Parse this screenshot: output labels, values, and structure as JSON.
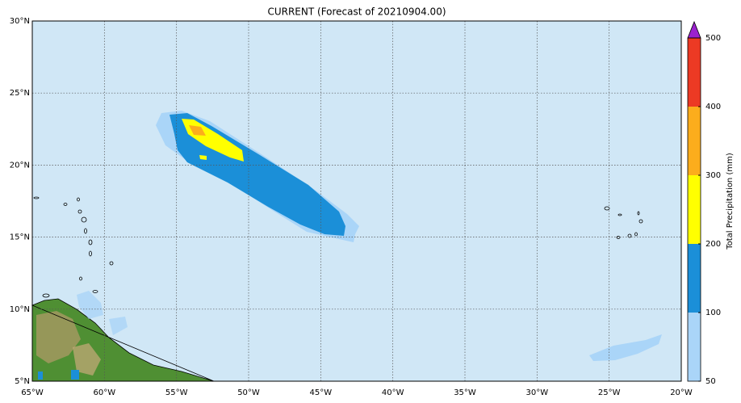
{
  "chart_data": {
    "type": "map",
    "title": "CURRENT (Forecast of 20210904.00)",
    "xlim": [
      -65,
      -20
    ],
    "ylim": [
      5,
      30
    ],
    "xticks": [
      {
        "value": -65,
        "label": "65°W"
      },
      {
        "value": -60,
        "label": "60°W"
      },
      {
        "value": -55,
        "label": "55°W"
      },
      {
        "value": -50,
        "label": "50°W"
      },
      {
        "value": -45,
        "label": "45°W"
      },
      {
        "value": -40,
        "label": "40°W"
      },
      {
        "value": -35,
        "label": "35°W"
      },
      {
        "value": -30,
        "label": "30°W"
      },
      {
        "value": -25,
        "label": "25°W"
      },
      {
        "value": -20,
        "label": "20°W"
      }
    ],
    "yticks": [
      {
        "value": 5,
        "label": "5°N"
      },
      {
        "value": 10,
        "label": "10°N"
      },
      {
        "value": 15,
        "label": "15°N"
      },
      {
        "value": 20,
        "label": "20°N"
      },
      {
        "value": 25,
        "label": "25°N"
      },
      {
        "value": 30,
        "label": "30°N"
      }
    ],
    "grid": true,
    "colorbar": {
      "label": "Total Precipitation (mm)",
      "levels": [
        50,
        100,
        200,
        300,
        400,
        500
      ],
      "colors": [
        "#aad5f8",
        "#1b8fd8",
        "#ffff00",
        "#fcad1c",
        "#ec3a24"
      ],
      "extend_color": "#9b22cf"
    }
  }
}
